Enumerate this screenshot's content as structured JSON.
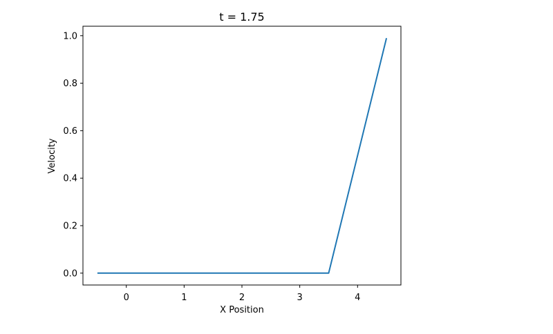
{
  "chart_data": {
    "type": "line",
    "title": "t = 1.75",
    "xlabel": "X Position",
    "ylabel": "Velocity",
    "xlim": [
      -0.75,
      4.75
    ],
    "ylim": [
      -0.05,
      1.04
    ],
    "xticks": [
      0,
      1,
      2,
      3,
      4
    ],
    "xtick_labels": [
      "0",
      "1",
      "2",
      "3",
      "4"
    ],
    "yticks": [
      0.0,
      0.2,
      0.4,
      0.6,
      0.8,
      1.0
    ],
    "ytick_labels": [
      "0.0",
      "0.2",
      "0.4",
      "0.6",
      "0.8",
      "1.0"
    ],
    "grid": false,
    "series": [
      {
        "color": "#1f77b4",
        "x": [
          -0.5,
          3.5,
          4.5
        ],
        "y": [
          0.0,
          0.0,
          0.99
        ]
      }
    ]
  }
}
